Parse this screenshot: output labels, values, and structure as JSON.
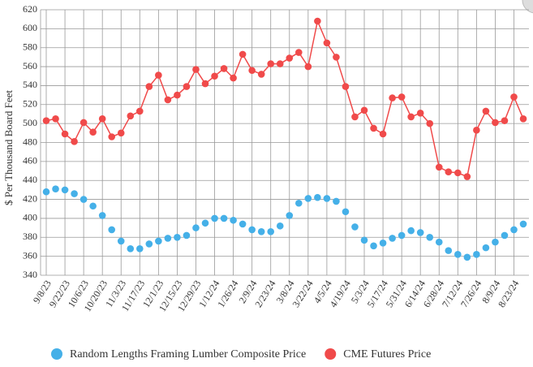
{
  "chart_data": {
    "type": "line",
    "ylabel": "$ Per Thousand Board Feet",
    "categories": [
      "9/8/23",
      null,
      "9/22/23",
      null,
      "10/6/23",
      null,
      "10/20/23",
      null,
      "11/3/23",
      null,
      "11/17/23",
      null,
      "12/1/23",
      null,
      "12/15/23",
      null,
      "12/29/23",
      null,
      "1/12/24",
      null,
      "1/26/24",
      null,
      "2/9/24",
      null,
      "2/23/24",
      null,
      "3/8/24",
      null,
      "3/22/24",
      null,
      "4/5/24",
      null,
      "4/19/24",
      null,
      "5/3/24",
      null,
      "5/17/24",
      null,
      "5/31/24",
      null,
      "6/14/24",
      null,
      "6/28/24",
      null,
      "7/12/24",
      null,
      "7/26/24",
      null,
      "8/9/24",
      null,
      "8/23/24",
      null
    ],
    "series": [
      {
        "name": "Random Lengths Framing Lumber Composite Price",
        "color": "#45b0e8",
        "line": false,
        "values": [
          428,
          431,
          430,
          426,
          420,
          413,
          403,
          388,
          376,
          368,
          368,
          373,
          376,
          379,
          380,
          382,
          390,
          395,
          400,
          400,
          398,
          394,
          388,
          386,
          386,
          392,
          403,
          416,
          421,
          422,
          421,
          418,
          407,
          391,
          377,
          371,
          374,
          379,
          382,
          387,
          385,
          380,
          375,
          366,
          362,
          359,
          362,
          369,
          375,
          382,
          388,
          394
        ]
      },
      {
        "name": "CME Futures Price",
        "color": "#f04a4a",
        "line": true,
        "values": [
          503,
          505,
          489,
          481,
          501,
          491,
          505,
          486,
          490,
          508,
          513,
          539,
          551,
          525,
          530,
          539,
          557,
          542,
          550,
          558,
          548,
          573,
          556,
          552,
          563,
          563,
          569,
          575,
          560,
          608,
          585,
          570,
          539,
          507,
          514,
          495,
          489,
          527,
          528,
          507,
          511,
          500,
          454,
          449,
          448,
          444,
          493,
          513,
          501,
          503,
          528,
          505
        ]
      }
    ],
    "ylim": [
      340,
      620
    ],
    "yticks": [
      340,
      360,
      380,
      400,
      420,
      440,
      460,
      480,
      500,
      520,
      540,
      560,
      580,
      600,
      620
    ],
    "grid": true
  }
}
